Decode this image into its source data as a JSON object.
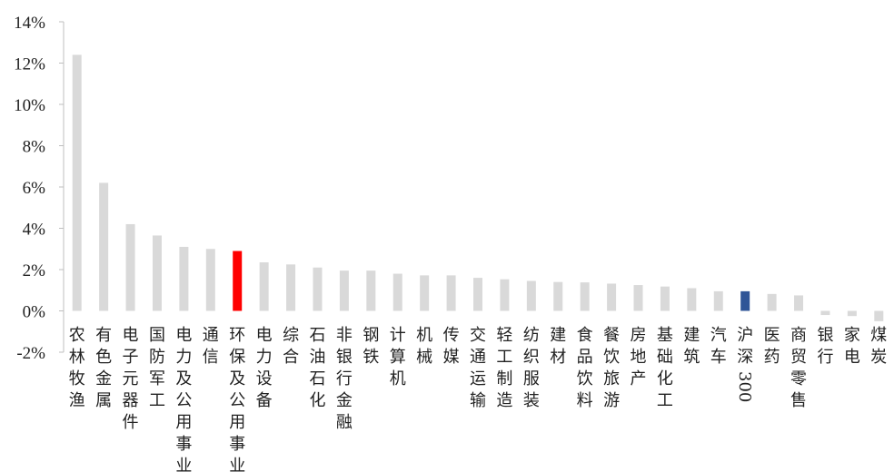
{
  "chart_data": {
    "type": "bar",
    "title": "",
    "xlabel": "",
    "ylabel": "",
    "ylim": [
      -2,
      14
    ],
    "yticks": [
      -2,
      0,
      2,
      4,
      6,
      8,
      10,
      12,
      14
    ],
    "ytick_labels": [
      "-2%",
      "0%",
      "2%",
      "4%",
      "6%",
      "8%",
      "10%",
      "12%",
      "14%"
    ],
    "grid": false,
    "categories": [
      "农林牧渔",
      "有色金属",
      "电子元器件",
      "国防军工",
      "电力及公用事业",
      "通信",
      "环保及公用事业",
      "电力设备",
      "综合",
      "石油石化",
      "非银行金融",
      "钢铁",
      "计算机",
      "机械",
      "传媒",
      "交通运输",
      "轻工制造",
      "纺织服装",
      "建材",
      "食品饮料",
      "餐饮旅游",
      "房地产",
      "基础化工",
      "建筑",
      "汽车",
      "沪深300",
      "医药",
      "商贸零售",
      "银行",
      "家电",
      "煤炭"
    ],
    "values": [
      12.4,
      6.2,
      4.2,
      3.65,
      3.1,
      3.0,
      2.9,
      2.35,
      2.25,
      2.1,
      1.95,
      1.95,
      1.8,
      1.72,
      1.72,
      1.6,
      1.53,
      1.45,
      1.4,
      1.38,
      1.32,
      1.25,
      1.18,
      1.1,
      0.95,
      0.95,
      0.82,
      0.75,
      -0.2,
      -0.25,
      -0.5
    ],
    "colors": {
      "default": "#d9d9d9",
      "highlight": "#ff0000",
      "benchmark": "#2f5597"
    },
    "highlight_index": 6,
    "benchmark_index": 25
  }
}
